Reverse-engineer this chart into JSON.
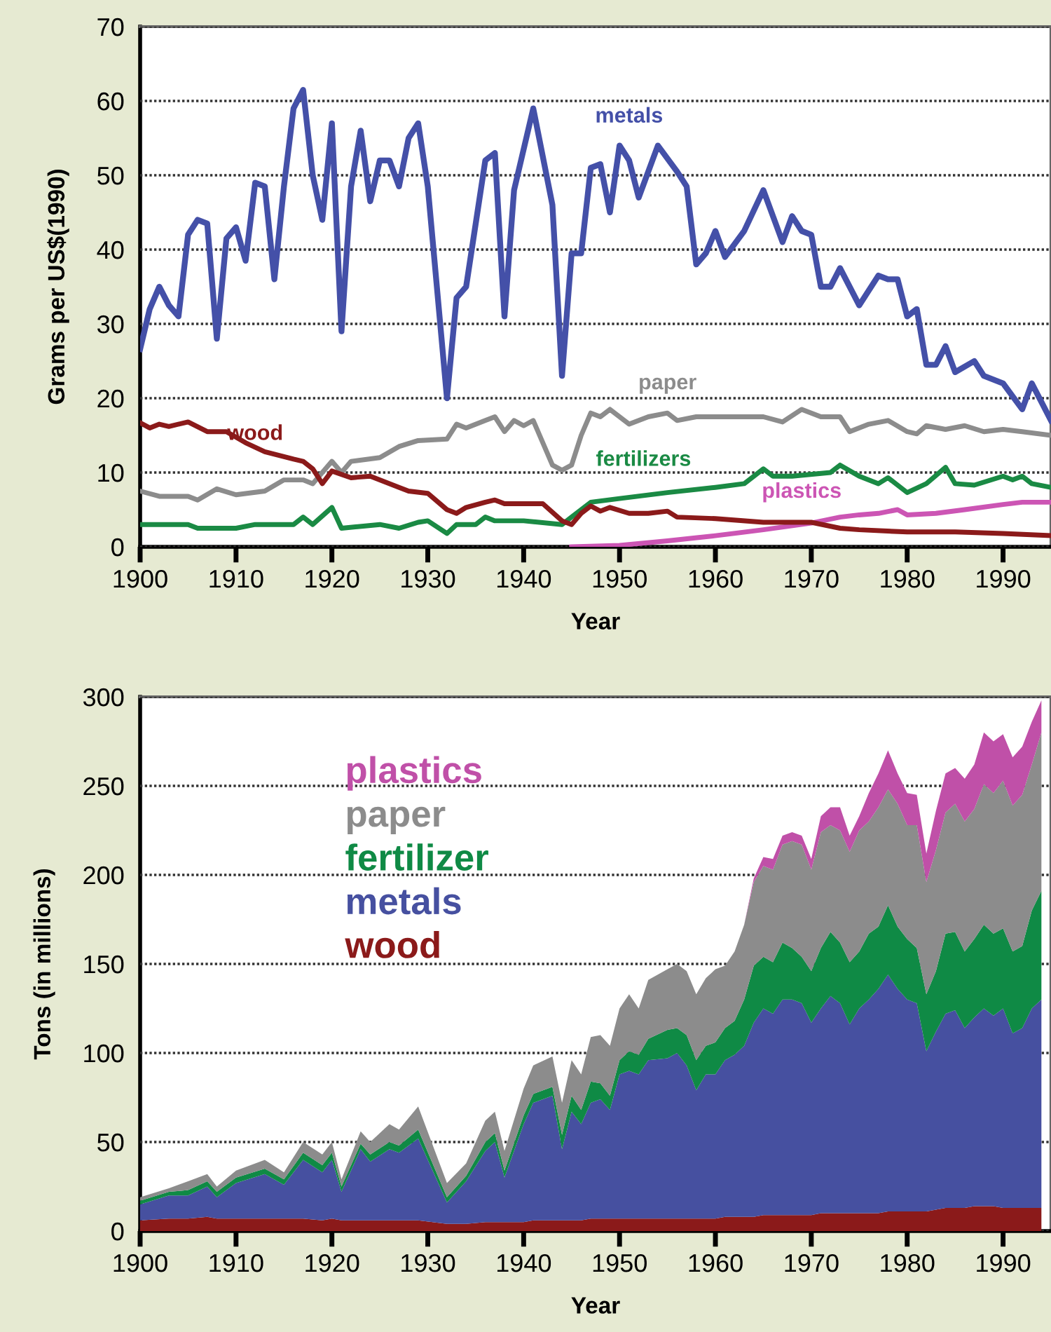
{
  "chart_data": [
    {
      "type": "line",
      "ylabel": "Grams per US$(1990)",
      "xlabel": "Year",
      "xlim": [
        1900,
        1995
      ],
      "xticks": [
        1900,
        1910,
        1920,
        1930,
        1940,
        1950,
        1960,
        1970,
        1980,
        1990
      ],
      "ylim": [
        0,
        70
      ],
      "yticks": [
        0,
        10,
        20,
        30,
        40,
        50,
        60,
        70
      ],
      "grid": "y",
      "legend": false,
      "series": [
        {
          "name": "metals",
          "color": "#4450a8",
          "x": [
            1900,
            1901,
            1902,
            1903,
            1904,
            1905,
            1906,
            1907,
            1908,
            1909,
            1910,
            1911,
            1912,
            1913,
            1914,
            1915,
            1916,
            1917,
            1918,
            1919,
            1920,
            1921,
            1922,
            1923,
            1924,
            1925,
            1926,
            1927,
            1928,
            1929,
            1930,
            1932,
            1933,
            1934,
            1936,
            1937,
            1938,
            1939,
            1941,
            1943,
            1944,
            1945,
            1946,
            1947,
            1948,
            1949,
            1950,
            1951,
            1952,
            1954,
            1956,
            1957,
            1958,
            1959,
            1960,
            1961,
            1963,
            1965,
            1967,
            1968,
            1969,
            1970,
            1971,
            1972,
            1973,
            1975,
            1977,
            1978,
            1979,
            1980,
            1981,
            1982,
            1983,
            1984,
            1985,
            1987,
            1988,
            1990,
            1992,
            1993,
            1995
          ],
          "values": [
            26.6,
            32,
            35,
            32.5,
            31,
            42,
            44,
            43.5,
            28,
            41.5,
            43,
            38.5,
            49,
            48.5,
            36,
            48.5,
            59,
            61.5,
            50,
            44,
            57,
            29,
            48.5,
            56,
            46.5,
            52,
            52,
            48.5,
            55,
            57,
            48.5,
            20,
            33.5,
            35,
            52,
            53,
            31,
            48,
            59,
            46,
            23,
            39.5,
            39.5,
            51,
            51.5,
            45,
            54,
            52,
            47,
            54,
            50.5,
            48.5,
            38,
            39.5,
            42.5,
            39,
            42.5,
            48,
            41,
            44.5,
            42.5,
            42,
            35,
            35,
            37.5,
            32.5,
            36.5,
            36,
            36,
            31,
            32,
            24.5,
            24.5,
            27,
            23.5,
            25,
            23,
            22,
            18.5,
            22,
            17
          ]
        },
        {
          "name": "paper",
          "color": "#8c8c8c",
          "x": [
            1900,
            1902,
            1905,
            1906,
            1908,
            1910,
            1913,
            1915,
            1917,
            1918,
            1920,
            1921,
            1922,
            1925,
            1927,
            1929,
            1932,
            1933,
            1934,
            1936,
            1937,
            1938,
            1939,
            1940,
            1941,
            1942,
            1943,
            1944,
            1945,
            1946,
            1947,
            1948,
            1949,
            1951,
            1953,
            1955,
            1956,
            1958,
            1962,
            1965,
            1967,
            1969,
            1971,
            1973,
            1974,
            1976,
            1978,
            1980,
            1981,
            1982,
            1984,
            1986,
            1988,
            1990,
            1992,
            1995
          ],
          "values": [
            7.5,
            6.8,
            6.8,
            6.3,
            7.8,
            7,
            7.5,
            9,
            9,
            8.5,
            11.5,
            10,
            11.5,
            12,
            13.5,
            14.3,
            14.5,
            16.5,
            16,
            17,
            17.5,
            15.5,
            17,
            16.3,
            17,
            14,
            11,
            10.3,
            11,
            15,
            18,
            17.5,
            18.5,
            16.5,
            17.5,
            18,
            17,
            17.5,
            17.5,
            17.5,
            16.8,
            18.5,
            17.5,
            17.5,
            15.5,
            16.5,
            17,
            15.5,
            15.2,
            16.3,
            15.8,
            16.3,
            15.5,
            15.8,
            15.5,
            15
          ]
        },
        {
          "name": "fertilizers",
          "color": "#1a8a44",
          "x": [
            1900,
            1905,
            1906,
            1910,
            1912,
            1916,
            1917,
            1918,
            1920,
            1921,
            1925,
            1927,
            1929,
            1930,
            1932,
            1933,
            1935,
            1936,
            1937,
            1940,
            1944,
            1945,
            1947,
            1950,
            1955,
            1960,
            1963,
            1965,
            1966,
            1968,
            1972,
            1973,
            1975,
            1977,
            1978,
            1980,
            1982,
            1984,
            1985,
            1987,
            1990,
            1991,
            1992,
            1993,
            1995
          ],
          "values": [
            3,
            3,
            2.5,
            2.5,
            3,
            3,
            4,
            3,
            5.3,
            2.5,
            3,
            2.5,
            3.3,
            3.5,
            1.8,
            3,
            3,
            4,
            3.5,
            3.5,
            3,
            4,
            6,
            6.5,
            7.3,
            8,
            8.5,
            10.5,
            9.5,
            9.5,
            10,
            11,
            9.5,
            8.5,
            9.3,
            7.3,
            8.5,
            10.7,
            8.5,
            8.3,
            9.5,
            9,
            9.5,
            8.5,
            8
          ]
        },
        {
          "name": "plastics",
          "color": "#cc55b4",
          "x": [
            1945,
            1950,
            1955,
            1960,
            1965,
            1970,
            1973,
            1975,
            1977,
            1979,
            1980,
            1983,
            1986,
            1990,
            1992,
            1995
          ],
          "values": [
            0,
            0.2,
            0.8,
            1.5,
            2.3,
            3.2,
            4,
            4.3,
            4.5,
            5,
            4.3,
            4.5,
            5,
            5.7,
            6,
            6
          ]
        },
        {
          "name": "wood",
          "color": "#8b1a1a",
          "x": [
            1900,
            1901,
            1902,
            1903,
            1905,
            1907,
            1909,
            1911,
            1913,
            1916,
            1917,
            1918,
            1919,
            1920,
            1922,
            1924,
            1927,
            1928,
            1930,
            1932,
            1933,
            1934,
            1936,
            1937,
            1938,
            1942,
            1944,
            1945,
            1946,
            1947,
            1948,
            1949,
            1951,
            1953,
            1955,
            1956,
            1960,
            1965,
            1970,
            1973,
            1975,
            1980,
            1985,
            1990,
            1995
          ],
          "values": [
            16.7,
            16,
            16.5,
            16.2,
            16.8,
            15.5,
            15.5,
            14,
            12.8,
            11.8,
            11.5,
            10.5,
            8.5,
            10.2,
            9.3,
            9.5,
            8,
            7.5,
            7.2,
            5,
            4.5,
            5.3,
            6,
            6.3,
            5.8,
            5.8,
            3.5,
            3,
            4.5,
            5.5,
            4.8,
            5.3,
            4.5,
            4.5,
            4.8,
            4,
            3.8,
            3.3,
            3.3,
            2.5,
            2.3,
            2,
            2,
            1.8,
            1.5
          ]
        }
      ]
    },
    {
      "type": "area",
      "stacked": true,
      "ylabel": "Tons (in millions)",
      "xlabel": "Year",
      "xlim": [
        1900,
        1995
      ],
      "xticks": [
        1900,
        1910,
        1920,
        1930,
        1940,
        1950,
        1960,
        1970,
        1980,
        1990
      ],
      "ylim": [
        0,
        300
      ],
      "yticks": [
        0,
        50,
        100,
        150,
        200,
        250,
        300
      ],
      "grid": "y",
      "legend": "top left",
      "x": [
        1900,
        1903,
        1905,
        1907,
        1908,
        1910,
        1913,
        1915,
        1917,
        1919,
        1920,
        1921,
        1923,
        1924,
        1926,
        1927,
        1929,
        1932,
        1934,
        1936,
        1937,
        1938,
        1940,
        1941,
        1943,
        1944,
        1945,
        1946,
        1947,
        1948,
        1949,
        1950,
        1951,
        1952,
        1953,
        1955,
        1956,
        1957,
        1958,
        1959,
        1960,
        1961,
        1962,
        1963,
        1964,
        1965,
        1966,
        1967,
        1968,
        1969,
        1970,
        1971,
        1972,
        1973,
        1974,
        1975,
        1976,
        1977,
        1978,
        1979,
        1980,
        1981,
        1982,
        1983,
        1984,
        1985,
        1986,
        1987,
        1988,
        1989,
        1990,
        1991,
        1992,
        1993,
        1994
      ],
      "series": [
        {
          "name": "wood",
          "color": "#8b1a1a",
          "values": [
            6,
            7,
            7,
            8,
            7,
            7,
            7,
            7,
            7,
            6,
            7,
            6,
            6,
            6,
            6,
            6,
            6,
            4,
            4,
            5,
            5,
            5,
            5,
            6,
            6,
            6,
            6,
            6,
            7,
            7,
            7,
            7,
            7,
            7,
            7,
            7,
            7,
            7,
            7,
            7,
            7,
            8,
            8,
            8,
            8,
            9,
            9,
            9,
            9,
            9,
            9,
            10,
            10,
            10,
            10,
            10,
            10,
            10,
            11,
            11,
            11,
            11,
            11,
            12,
            13,
            13,
            13,
            14,
            14,
            14,
            13,
            13,
            13,
            13,
            13
          ]
        },
        {
          "name": "metals",
          "color": "#4650a0",
          "values": [
            9,
            13,
            13,
            17,
            12,
            20,
            25,
            19,
            33,
            27,
            33,
            16,
            40,
            33,
            40,
            38,
            46,
            12,
            24,
            40,
            45,
            25,
            55,
            66,
            70,
            40,
            61,
            54,
            65,
            67,
            61,
            81,
            83,
            81,
            89,
            90,
            93,
            86,
            72,
            81,
            81,
            88,
            91,
            96,
            109,
            116,
            113,
            121,
            121,
            119,
            108,
            115,
            122,
            118,
            106,
            115,
            120,
            126,
            133,
            125,
            119,
            117,
            90,
            100,
            109,
            111,
            101,
            106,
            111,
            107,
            112,
            98,
            101,
            112,
            117
          ]
        },
        {
          "name": "fertilizer",
          "color": "#0f8a45",
          "values": [
            2,
            2,
            3,
            3,
            3,
            3,
            3,
            3,
            4,
            4,
            4,
            3,
            3,
            4,
            4,
            4,
            5,
            3,
            3,
            5,
            5,
            4,
            5,
            5,
            5,
            8,
            9,
            8,
            12,
            9,
            8,
            8,
            11,
            11,
            12,
            16,
            14,
            17,
            17,
            16,
            18,
            18,
            19,
            26,
            32,
            29,
            29,
            32,
            29,
            26,
            29,
            34,
            36,
            34,
            35,
            32,
            37,
            35,
            39,
            35,
            34,
            31,
            32,
            34,
            45,
            44,
            43,
            44,
            47,
            46,
            45,
            46,
            46,
            55,
            61
          ]
        },
        {
          "name": "paper",
          "color": "#8c8c8c",
          "values": [
            2,
            2,
            5,
            4,
            3,
            4,
            5,
            4,
            6,
            6,
            6,
            4,
            7,
            7,
            10,
            9,
            13,
            8,
            7,
            12,
            12,
            11,
            15,
            16,
            17,
            18,
            20,
            20,
            25,
            27,
            28,
            29,
            32,
            26,
            33,
            34,
            36,
            36,
            37,
            38,
            41,
            35,
            39,
            42,
            47,
            51,
            52,
            55,
            60,
            63,
            57,
            65,
            60,
            63,
            62,
            68,
            63,
            67,
            65,
            69,
            64,
            69,
            63,
            68,
            68,
            72,
            73,
            73,
            79,
            79,
            83,
            82,
            85,
            82,
            89
          ]
        },
        {
          "name": "plastics",
          "color": "#c050a8",
          "values": [
            0,
            0,
            0,
            0,
            0,
            0,
            0,
            0,
            0,
            0,
            0,
            0,
            0,
            0,
            0,
            0,
            0,
            0,
            0,
            0,
            0,
            0,
            0,
            0,
            0,
            0,
            0,
            0,
            0,
            0,
            0,
            0,
            0,
            0,
            0,
            0,
            0,
            0,
            0,
            0,
            0,
            0,
            0,
            0,
            2,
            5,
            6,
            5,
            5,
            5,
            6,
            9,
            10,
            13,
            9,
            8,
            16,
            19,
            22,
            17,
            18,
            17,
            16,
            22,
            22,
            20,
            24,
            25,
            29,
            29,
            26,
            27,
            27,
            24,
            18
          ]
        }
      ]
    }
  ]
}
